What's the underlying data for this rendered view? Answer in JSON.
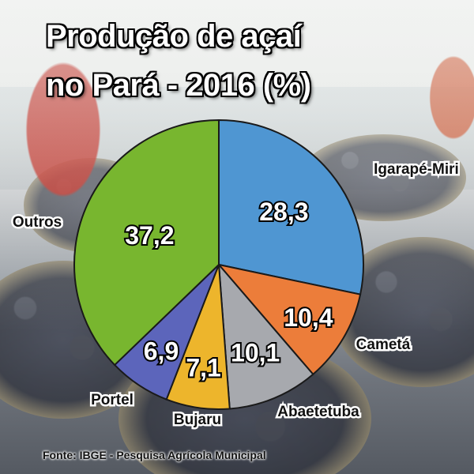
{
  "title": {
    "line1": "Produção de açaí",
    "line2": "no Pará - 2016 (%)"
  },
  "source": "Fonte: IBGE - Pesquisa Agrícola Municipal",
  "chart_data": {
    "type": "pie",
    "title": "Produção de açaí no Pará - 2016 (%)",
    "categories": [
      "Igarapé-Miri",
      "Cametá",
      "Abaetetuba",
      "Bujaru",
      "Portel",
      "Outros"
    ],
    "values": [
      28.3,
      10.4,
      10.1,
      7.1,
      6.9,
      37.2
    ],
    "value_labels": [
      "28,3",
      "10,4",
      "10,1",
      "7,1",
      "6,9",
      "37,2"
    ],
    "colors": [
      "#4f96d2",
      "#ec7d3a",
      "#a7a9ae",
      "#edb52c",
      "#5c65bb",
      "#78b62f"
    ],
    "start": "12 o'clock",
    "direction": "clockwise",
    "legend": "none"
  }
}
